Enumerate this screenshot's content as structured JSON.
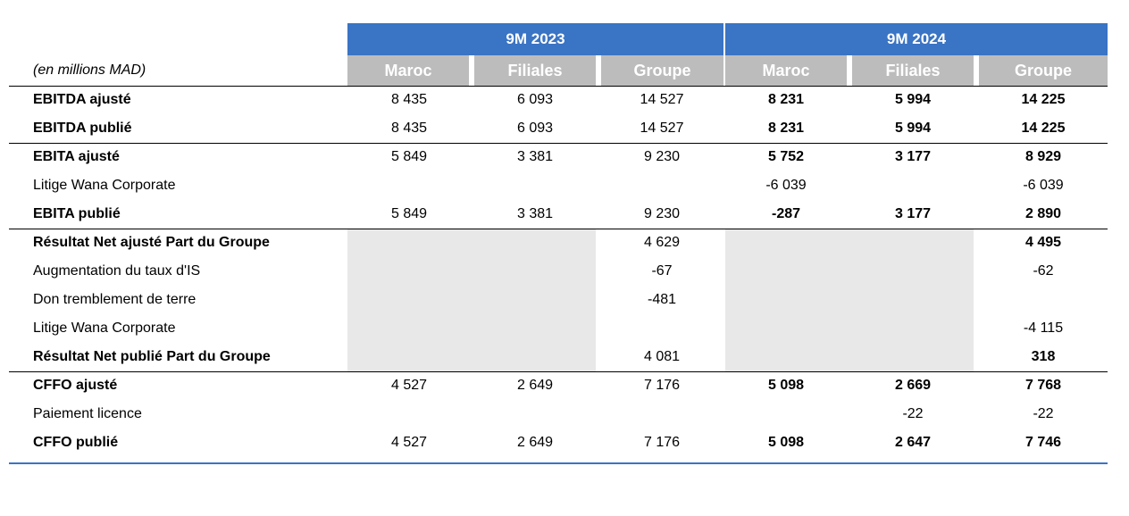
{
  "header": {
    "groups": [
      "9M 2023",
      "9M 2024"
    ],
    "unit_label": "(en millions MAD)",
    "subheaders": [
      "Maroc",
      "Filiales",
      "Groupe",
      "Maroc",
      "Filiales",
      "Groupe"
    ]
  },
  "rows": [
    {
      "label": "EBITDA ajusté",
      "bold": true,
      "values": [
        "8 435",
        "6 093",
        "14 527",
        "8 231",
        "5 994",
        "14 225"
      ]
    },
    {
      "label": "EBITDA publié",
      "bold": true,
      "values": [
        "8 435",
        "6 093",
        "14 527",
        "8 231",
        "5 994",
        "14 225"
      ]
    },
    {
      "label": "EBITA ajusté",
      "bold": true,
      "values": [
        "5 849",
        "3 381",
        "9 230",
        "5 752",
        "3 177",
        "8 929"
      ]
    },
    {
      "label": "Litige Wana Corporate",
      "bold": false,
      "values": [
        "",
        "",
        "",
        "-6 039",
        "",
        "-6 039"
      ]
    },
    {
      "label": "EBITA publié",
      "bold": true,
      "values": [
        "5 849",
        "3 381",
        "9 230",
        "-287",
        "3 177",
        "2 890"
      ]
    },
    {
      "label": "Résultat Net ajusté Part du Groupe",
      "bold": true,
      "values": [
        "",
        "",
        "4 629",
        "",
        "",
        "4 495"
      ]
    },
    {
      "label": "Augmentation du taux d'IS",
      "bold": false,
      "values": [
        "",
        "",
        "-67",
        "",
        "",
        "-62"
      ]
    },
    {
      "label": "Don tremblement de terre",
      "bold": false,
      "values": [
        "",
        "",
        "-481",
        "",
        "",
        ""
      ]
    },
    {
      "label": "Litige Wana Corporate",
      "bold": false,
      "values": [
        "",
        "",
        "",
        "",
        "",
        "-4 115"
      ]
    },
    {
      "label": "Résultat Net publié Part du Groupe",
      "bold": true,
      "values": [
        "",
        "",
        "4 081",
        "",
        "",
        "318"
      ]
    },
    {
      "label": "CFFO ajusté",
      "bold": true,
      "values": [
        "4 527",
        "2 649",
        "7 176",
        "5 098",
        "2 669",
        "7 768"
      ]
    },
    {
      "label": "Paiement licence",
      "bold": false,
      "values": [
        "",
        "",
        "",
        "",
        "-22",
        "-22"
      ]
    },
    {
      "label": "CFFO publié",
      "bold": true,
      "values": [
        "4 527",
        "2 649",
        "7 176",
        "5 098",
        "2 647",
        "7 746"
      ]
    }
  ]
}
